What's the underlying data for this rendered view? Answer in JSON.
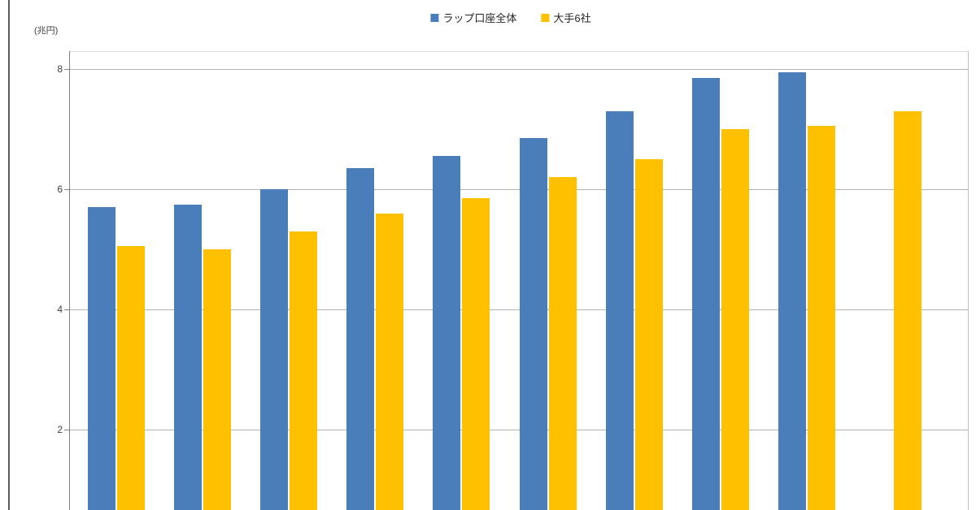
{
  "chart_data": {
    "type": "bar",
    "title": "",
    "unit_label": "(兆円)",
    "legend_position": "top-center",
    "grid": true,
    "x_axis_labels_visible": false,
    "cropped_at_bottom": true,
    "n_groups": 10,
    "y_axis": {
      "visible_top": 8.3,
      "visible_bottom": 0.65,
      "gridlines_at": [
        8,
        6,
        4,
        2
      ]
    },
    "y_ticks": [
      {
        "label": "8",
        "value": 8
      },
      {
        "label": "6",
        "value": 6
      },
      {
        "label": "4",
        "value": 4
      },
      {
        "label": "2",
        "value": 2
      }
    ],
    "legend": [
      {
        "name": "ラップ口座全体",
        "color": "#4a7ebb"
      },
      {
        "name": "大手6社",
        "color": "#ffc000"
      }
    ],
    "series": [
      {
        "name": "ラップ口座全体",
        "color": "#4a7ebb",
        "values": [
          5.7,
          5.75,
          6.0,
          6.35,
          6.55,
          6.85,
          7.3,
          7.85,
          7.95,
          null
        ]
      },
      {
        "name": "大手6社",
        "color": "#ffc000",
        "values": [
          5.05,
          5.0,
          5.3,
          5.6,
          5.85,
          6.2,
          6.5,
          7.0,
          7.05,
          7.3
        ]
      }
    ],
    "colors": {
      "series_blue": "#4a7ebb",
      "series_yellow": "#ffc000",
      "gridline": "#b3b3b3",
      "axis": "#808080",
      "outer_frame": "#595959",
      "text": "#404040"
    }
  }
}
